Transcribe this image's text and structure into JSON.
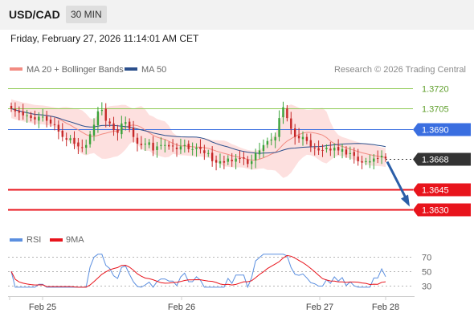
{
  "header": {
    "pair": "USD/CAD",
    "timeframe": "30 MIN"
  },
  "timestamp": "Friday, February 27, 2026 11:14:01 AM CET",
  "colors": {
    "support": "#e8141c",
    "resistance": "#8fca55",
    "pivot": "#3a6ee0",
    "current": "#333333",
    "ma20": "#f28b82",
    "ma50": "#2b4f8c",
    "band_fill": "#fde0df",
    "candle_up": "#3aa33a",
    "candle_down": "#c62828",
    "arrow": "#2b5ea8",
    "rsi": "#5b8fe0",
    "rsi_ma": "#e8141c"
  },
  "legend": {
    "ma20": "MA 20 + Bollinger Bands",
    "ma50": "MA 50",
    "credit": "Research © 2026 Trading Central",
    "rsi": "RSI",
    "rsi_ma": "9MA"
  },
  "chart_data": [
    {
      "type": "line",
      "title": "",
      "price_axis": {
        "min": 1.3619,
        "max": 1.3726
      },
      "levels": [
        {
          "label": "1.3720",
          "value": 1.372,
          "kind": "resistance"
        },
        {
          "label": "1.3705",
          "value": 1.3705,
          "kind": "resistance"
        },
        {
          "label": "1.3690",
          "value": 1.369,
          "kind": "pivot"
        },
        {
          "label": "1.3668",
          "value": 1.3668,
          "kind": "current"
        },
        {
          "label": "1.3645",
          "value": 1.3645,
          "kind": "support"
        },
        {
          "label": "1.3630",
          "value": 1.363,
          "kind": "support"
        }
      ],
      "x_ticks": [
        "Feb 25",
        "Feb 26",
        "Feb 27",
        "Feb 28"
      ],
      "close_series": [
        1.3705,
        1.3703,
        1.3702,
        1.37,
        1.37,
        1.3698,
        1.3697,
        1.3699,
        1.3699,
        1.3696,
        1.3694,
        1.3693,
        1.3688,
        1.3684,
        1.3682,
        1.3683,
        1.3679,
        1.3677,
        1.3676,
        1.3678,
        1.3686,
        1.3693,
        1.3703,
        1.3704,
        1.3696,
        1.3694,
        1.3689,
        1.3687,
        1.3694,
        1.3695,
        1.369,
        1.3684,
        1.3679,
        1.3678,
        1.3679,
        1.368,
        1.3674,
        1.3677,
        1.3678,
        1.3678,
        1.3677,
        1.3677,
        1.3675,
        1.3677,
        1.3678,
        1.3675,
        1.3675,
        1.3676,
        1.3675,
        1.3672,
        1.3672,
        1.3666,
        1.3665,
        1.3666,
        1.3665,
        1.3668,
        1.3666,
        1.3668,
        1.3668,
        1.3668,
        1.3664,
        1.3666,
        1.3672,
        1.3674,
        1.3678,
        1.3681,
        1.3682,
        1.3684,
        1.3698,
        1.3706,
        1.3698,
        1.369,
        1.3684,
        1.3683,
        1.3684,
        1.3681,
        1.3677,
        1.3676,
        1.3674,
        1.3674,
        1.3676,
        1.3674,
        1.3676,
        1.3674,
        1.3675,
        1.3671,
        1.3672,
        1.367,
        1.3666,
        1.3665,
        1.3666,
        1.3666,
        1.3668,
        1.3668,
        1.367,
        1.3668
      ]
    },
    {
      "type": "line",
      "title": "",
      "y_axis": {
        "min": 20,
        "max": 76,
        "ticks": [
          70,
          50,
          30
        ]
      },
      "series": [
        {
          "name": "RSI"
        },
        {
          "name": "9MA"
        }
      ]
    }
  ],
  "forecast": {
    "target": 1.363
  }
}
